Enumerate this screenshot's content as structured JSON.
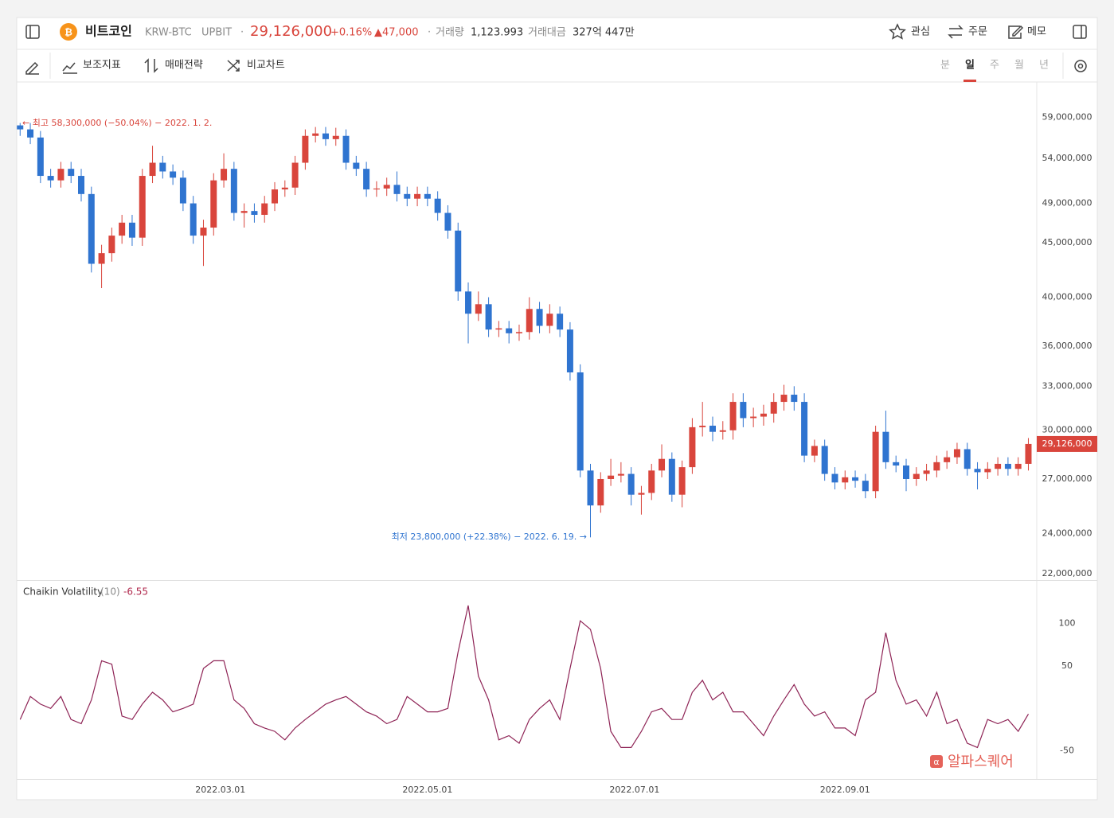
{
  "header": {
    "name": "비트코인",
    "pair": "KRW-BTC",
    "exchange": "UPBIT",
    "price": "29,126,000",
    "change_rate": "+0.16%",
    "change": "▲47,000",
    "volume_label": "거래량",
    "volume": "1,123.993",
    "amount_label": "거래대금",
    "amount": "327억 447만",
    "actions": [
      "관심",
      "주문",
      "메모"
    ]
  },
  "toolbar": {
    "tools": [
      "보조지표",
      "매매전략",
      "비교차트"
    ],
    "intervals": [
      "분",
      "일",
      "주",
      "월",
      "년"
    ]
  },
  "watermark": "알파스퀘어",
  "chart_data": [
    {
      "type": "candlestick",
      "log_scale": true,
      "grid": false,
      "up_color": "#d9453c",
      "down_color": "#2f74d0",
      "annotations": [
        "← 최고 58,300,000 (−50.04%) − 2022. 1. 2.",
        "최저 23,800,000 (+22.38%) − 2022. 6. 19. →"
      ],
      "xlim": [
        "2021-12-31",
        "2022-10-27"
      ],
      "x": [
        "2022-01-01",
        "2022-01-04",
        "2022-01-07",
        "2022-01-10",
        "2022-01-13",
        "2022-01-16",
        "2022-01-19",
        "2022-01-22",
        "2022-01-25",
        "2022-01-28",
        "2022-01-31",
        "2022-02-03",
        "2022-02-06",
        "2022-02-09",
        "2022-02-12",
        "2022-02-15",
        "2022-02-18",
        "2022-02-21",
        "2022-02-24",
        "2022-02-27",
        "2022-03-02",
        "2022-03-05",
        "2022-03-08",
        "2022-03-11",
        "2022-03-14",
        "2022-03-17",
        "2022-03-20",
        "2022-03-23",
        "2022-03-26",
        "2022-03-29",
        "2022-04-01",
        "2022-04-04",
        "2022-04-07",
        "2022-04-10",
        "2022-04-13",
        "2022-04-16",
        "2022-04-19",
        "2022-04-22",
        "2022-04-25",
        "2022-04-28",
        "2022-05-01",
        "2022-05-04",
        "2022-05-07",
        "2022-05-10",
        "2022-05-13",
        "2022-05-16",
        "2022-05-19",
        "2022-05-22",
        "2022-05-25",
        "2022-05-28",
        "2022-05-31",
        "2022-06-03",
        "2022-06-06",
        "2022-06-09",
        "2022-06-12",
        "2022-06-15",
        "2022-06-18",
        "2022-06-21",
        "2022-06-24",
        "2022-06-27",
        "2022-06-30",
        "2022-07-03",
        "2022-07-06",
        "2022-07-09",
        "2022-07-12",
        "2022-07-15",
        "2022-07-18",
        "2022-07-21",
        "2022-07-24",
        "2022-07-27",
        "2022-07-30",
        "2022-08-02",
        "2022-08-05",
        "2022-08-08",
        "2022-08-11",
        "2022-08-14",
        "2022-08-17",
        "2022-08-20",
        "2022-08-23",
        "2022-08-26",
        "2022-08-29",
        "2022-09-01",
        "2022-09-04",
        "2022-09-07",
        "2022-09-10",
        "2022-09-13",
        "2022-09-16",
        "2022-09-19",
        "2022-09-22",
        "2022-09-25",
        "2022-09-28",
        "2022-10-01",
        "2022-10-04",
        "2022-10-07",
        "2022-10-10",
        "2022-10-13",
        "2022-10-16",
        "2022-10-19",
        "2022-10-22",
        "2022-10-25"
      ],
      "open": [
        58000000,
        57500000,
        56500000,
        52000000,
        51500000,
        52800000,
        52000000,
        50000000,
        43000000,
        44000000,
        45700000,
        47000000,
        45500000,
        52000000,
        53500000,
        52500000,
        51800000,
        49000000,
        45700000,
        46500000,
        51500000,
        52800000,
        48000000,
        48200000,
        47800000,
        49000000,
        50500000,
        50700000,
        53500000,
        56700000,
        57000000,
        56300000,
        56700000,
        53500000,
        52800000,
        50500000,
        50600000,
        51000000,
        50000000,
        49500000,
        50000000,
        49500000,
        48000000,
        46200000,
        40500000,
        38600000,
        39400000,
        37300000,
        37400000,
        37000000,
        37100000,
        39000000,
        37600000,
        38600000,
        37300000,
        34000000,
        27500000,
        25500000,
        27000000,
        27200000,
        27300000,
        26100000,
        26200000,
        27500000,
        28200000,
        26100000,
        27700000,
        30200000,
        30300000,
        29900000,
        30000000,
        31900000,
        30800000,
        30900000,
        31100000,
        31900000,
        32400000,
        31900000,
        28400000,
        29000000,
        27300000,
        26800000,
        27100000,
        26900000,
        26300000,
        29900000,
        28000000,
        27800000,
        27000000,
        27300000,
        27500000,
        28000000,
        28300000,
        28800000,
        27600000,
        27400000,
        27600000,
        27900000,
        27600000,
        27900000
      ],
      "high": [
        58300000,
        58300000,
        57300000,
        52800000,
        53600000,
        53600000,
        52800000,
        50800000,
        44800000,
        46500000,
        47800000,
        47800000,
        52800000,
        55500000,
        54300000,
        53300000,
        52600000,
        49800000,
        47300000,
        52300000,
        54600000,
        53600000,
        49000000,
        49000000,
        49800000,
        51300000,
        51500000,
        54300000,
        57500000,
        57800000,
        57800000,
        57700000,
        57500000,
        54300000,
        53600000,
        51400000,
        51800000,
        52500000,
        50800000,
        50800000,
        50800000,
        50300000,
        48800000,
        47000000,
        41300000,
        40500000,
        40000000,
        38000000,
        38000000,
        37700000,
        40000000,
        39600000,
        39400000,
        39200000,
        37900000,
        34600000,
        27900000,
        27400000,
        28200000,
        28000000,
        27700000,
        26600000,
        27900000,
        29100000,
        28600000,
        28100000,
        30800000,
        31900000,
        30900000,
        30600000,
        32500000,
        32500000,
        31500000,
        31700000,
        32500000,
        33100000,
        33000000,
        32500000,
        29400000,
        29400000,
        27700000,
        27500000,
        27500000,
        27300000,
        30300000,
        31300000,
        28400000,
        28200000,
        27700000,
        27900000,
        28400000,
        28700000,
        29200000,
        29200000,
        28000000,
        28000000,
        28300000,
        28300000,
        28300000,
        29500000
      ],
      "low": [
        56700000,
        55700000,
        51200000,
        50700000,
        50700000,
        51200000,
        49200000,
        42200000,
        40800000,
        43200000,
        44900000,
        44700000,
        44700000,
        51200000,
        51700000,
        51000000,
        48200000,
        44900000,
        42800000,
        45700000,
        50700000,
        47200000,
        46500000,
        47000000,
        47000000,
        48200000,
        49700000,
        49900000,
        52700000,
        55900000,
        55500000,
        55500000,
        52700000,
        52000000,
        49700000,
        49700000,
        49800000,
        49200000,
        48700000,
        48700000,
        48700000,
        47200000,
        45400000,
        39700000,
        36200000,
        38000000,
        36700000,
        36700000,
        36200000,
        36400000,
        36500000,
        37000000,
        37000000,
        36700000,
        33400000,
        27100000,
        23800000,
        25100000,
        26600000,
        26800000,
        25500000,
        25000000,
        25800000,
        27100000,
        25700000,
        25400000,
        27300000,
        29600000,
        29300000,
        29400000,
        29400000,
        30200000,
        30200000,
        30300000,
        30500000,
        31300000,
        31300000,
        28000000,
        28000000,
        26900000,
        26400000,
        26400000,
        26500000,
        25900000,
        25900000,
        27600000,
        27400000,
        26300000,
        26600000,
        26900000,
        27100000,
        27600000,
        27900000,
        27200000,
        26400000,
        27000000,
        27200000,
        27200000,
        27200000,
        27500000
      ],
      "close": [
        57500000,
        56500000,
        52000000,
        51500000,
        52800000,
        52000000,
        50000000,
        43000000,
        44000000,
        45700000,
        47000000,
        45500000,
        52000000,
        53500000,
        52500000,
        51800000,
        49000000,
        45700000,
        46500000,
        51500000,
        52800000,
        48000000,
        48200000,
        47800000,
        49000000,
        50500000,
        50700000,
        53500000,
        56700000,
        57000000,
        56300000,
        56700000,
        53500000,
        52800000,
        50500000,
        50600000,
        51000000,
        50000000,
        49500000,
        50000000,
        49500000,
        48000000,
        46200000,
        40500000,
        38600000,
        39400000,
        37300000,
        37400000,
        37000000,
        37100000,
        39000000,
        37600000,
        38600000,
        37300000,
        34000000,
        27500000,
        25500000,
        27000000,
        27200000,
        27300000,
        26100000,
        26200000,
        27500000,
        28200000,
        26100000,
        27700000,
        30200000,
        30300000,
        29900000,
        30000000,
        31900000,
        30800000,
        30900000,
        31100000,
        31900000,
        32400000,
        31900000,
        28400000,
        29000000,
        27300000,
        26800000,
        27100000,
        26900000,
        26300000,
        29900000,
        28000000,
        27800000,
        27000000,
        27300000,
        27500000,
        28000000,
        28300000,
        28800000,
        27600000,
        27400000,
        27600000,
        27900000,
        27600000,
        27900000,
        29126000
      ],
      "ylim": [
        21700000,
        63600000
      ],
      "yticks": [
        {
          "value": 22000000,
          "label": "22,000,000"
        },
        {
          "value": 24000000,
          "label": "24,000,000"
        },
        {
          "value": 27000000,
          "label": "27,000,000"
        },
        {
          "value": 30000000,
          "label": "30,000,000"
        },
        {
          "value": 33000000,
          "label": "33,000,000"
        },
        {
          "value": 36000000,
          "label": "36,000,000"
        },
        {
          "value": 40000000,
          "label": "40,000,000"
        },
        {
          "value": 45000000,
          "label": "45,000,000"
        },
        {
          "value": 49000000,
          "label": "49,000,000"
        },
        {
          "value": 54000000,
          "label": "54,000,000"
        },
        {
          "value": 59000000,
          "label": "59,000,000"
        }
      ]
    },
    {
      "type": "line",
      "title": "Chaikin Volatility",
      "period": "(10)",
      "color": "#8e2355",
      "grid": false,
      "xlim": [
        "2021-12-31",
        "2022-10-27"
      ],
      "x": [
        "2022-01-01",
        "2022-01-04",
        "2022-01-07",
        "2022-01-10",
        "2022-01-13",
        "2022-01-16",
        "2022-01-19",
        "2022-01-22",
        "2022-01-25",
        "2022-01-28",
        "2022-01-31",
        "2022-02-03",
        "2022-02-06",
        "2022-02-09",
        "2022-02-12",
        "2022-02-15",
        "2022-02-18",
        "2022-02-21",
        "2022-02-24",
        "2022-02-27",
        "2022-03-02",
        "2022-03-05",
        "2022-03-08",
        "2022-03-11",
        "2022-03-14",
        "2022-03-17",
        "2022-03-20",
        "2022-03-23",
        "2022-03-26",
        "2022-03-29",
        "2022-04-01",
        "2022-04-04",
        "2022-04-07",
        "2022-04-10",
        "2022-04-13",
        "2022-04-16",
        "2022-04-19",
        "2022-04-22",
        "2022-04-25",
        "2022-04-28",
        "2022-05-01",
        "2022-05-04",
        "2022-05-07",
        "2022-05-10",
        "2022-05-13",
        "2022-05-16",
        "2022-05-19",
        "2022-05-22",
        "2022-05-25",
        "2022-05-28",
        "2022-05-31",
        "2022-06-03",
        "2022-06-06",
        "2022-06-09",
        "2022-06-12",
        "2022-06-15",
        "2022-06-18",
        "2022-06-21",
        "2022-06-24",
        "2022-06-27",
        "2022-06-30",
        "2022-07-03",
        "2022-07-06",
        "2022-07-09",
        "2022-07-12",
        "2022-07-15",
        "2022-07-18",
        "2022-07-21",
        "2022-07-24",
        "2022-07-27",
        "2022-07-30",
        "2022-08-02",
        "2022-08-05",
        "2022-08-08",
        "2022-08-11",
        "2022-08-14",
        "2022-08-17",
        "2022-08-20",
        "2022-08-23",
        "2022-08-26",
        "2022-08-29",
        "2022-09-01",
        "2022-09-04",
        "2022-09-07",
        "2022-09-10",
        "2022-09-13",
        "2022-09-16",
        "2022-09-19",
        "2022-09-22",
        "2022-09-25",
        "2022-09-28",
        "2022-10-01",
        "2022-10-04",
        "2022-10-07",
        "2022-10-10",
        "2022-10-13",
        "2022-10-16",
        "2022-10-19",
        "2022-10-22",
        "2022-10-25"
      ],
      "values": [
        -13,
        14,
        5,
        0,
        14,
        -13,
        -18,
        10,
        56,
        52,
        -9,
        -13,
        5,
        19,
        10,
        -4,
        0,
        5,
        47,
        56,
        56,
        10,
        0,
        -18,
        -23,
        -27,
        -37,
        -23,
        -13,
        -4,
        5,
        10,
        14,
        5,
        -4,
        -9,
        -18,
        -13,
        14,
        5,
        -4,
        -4,
        0,
        66,
        121,
        38,
        10,
        -37,
        -32,
        -41,
        -13,
        0,
        10,
        -13,
        47,
        103,
        93,
        47,
        -27,
        -46,
        -46,
        -27,
        -4,
        0,
        -13,
        -13,
        19,
        33,
        10,
        19,
        -4,
        -4,
        -18,
        -32,
        -9,
        10,
        28,
        5,
        -9,
        -4,
        -23,
        -23,
        -32,
        10,
        19,
        89,
        33,
        5,
        10,
        -9,
        19,
        -18,
        -13,
        -41,
        -46,
        -13,
        -18,
        -13,
        -27,
        -6.55
      ],
      "ylim": [
        -83,
        149
      ],
      "yticks": [
        100,
        50,
        -50
      ],
      "xticks": [
        {
          "value": "2022-03-01",
          "label": "2022.03.01"
        },
        {
          "value": "2022-05-01",
          "label": "2022.05.01"
        },
        {
          "value": "2022-07-01",
          "label": "2022.07.01"
        },
        {
          "value": "2022-09-01",
          "label": "2022.09.01"
        }
      ]
    }
  ]
}
